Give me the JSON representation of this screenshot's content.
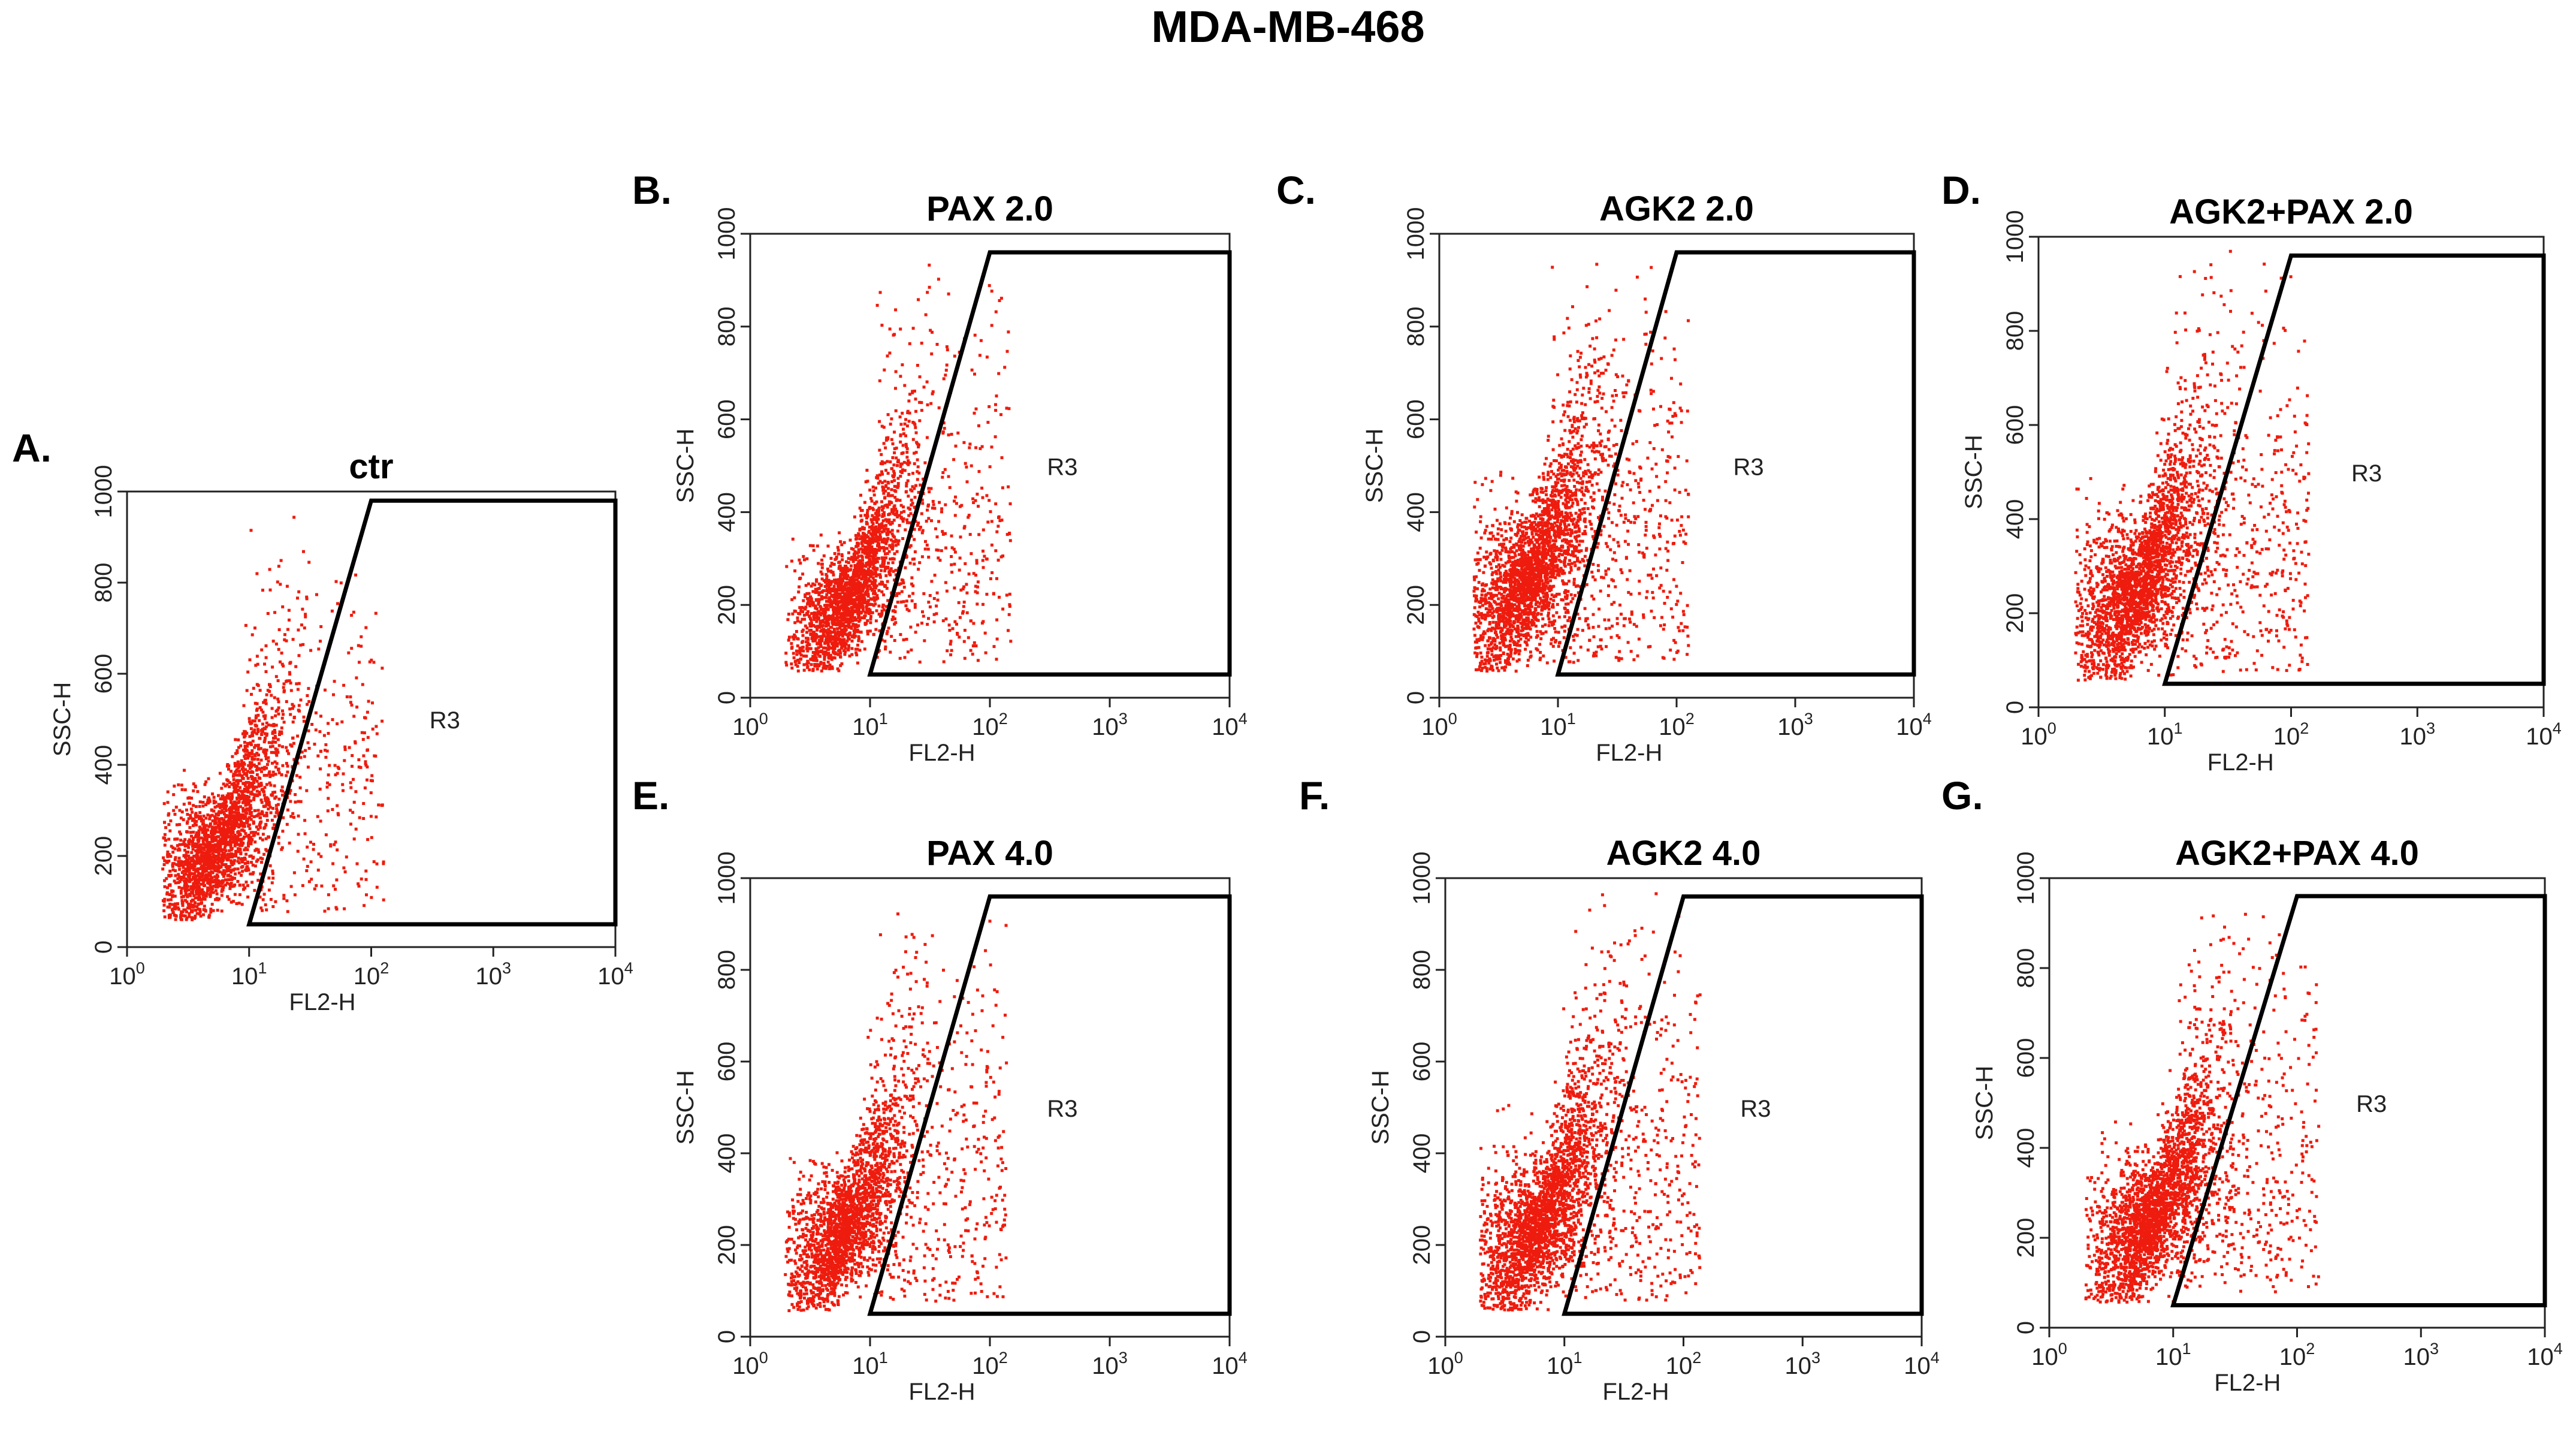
{
  "figure": {
    "title": "MDA-MB-468"
  },
  "chart_data": [
    {
      "type": "scatter",
      "letter": "A.",
      "title": "ctr",
      "xlabel": "FL2-H",
      "ylabel": "SSC-H",
      "xscale": "log",
      "xlim": [
        1,
        10000
      ],
      "ylim": [
        0,
        1000
      ],
      "yticks": [
        "0",
        "200",
        "400",
        "600",
        "800",
        "1000"
      ],
      "xticks": [
        {
          "base": "10",
          "exp": "0"
        },
        {
          "base": "10",
          "exp": "1"
        },
        {
          "base": "10",
          "exp": "2"
        },
        {
          "base": "10",
          "exp": "3"
        },
        {
          "base": "10",
          "exp": "4"
        }
      ],
      "gate": {
        "name": "R3",
        "polygon_data_units": [
          [
            10,
            50
          ],
          [
            10000,
            50
          ],
          [
            10000,
            980
          ],
          [
            100,
            980
          ]
        ]
      },
      "population": {
        "center_fl2": 5.5,
        "center_ssc": 220,
        "spread_decades": 0.28,
        "spread_ssc": 90,
        "slope": 260,
        "events": 2600
      }
    },
    {
      "type": "scatter",
      "letter": "B.",
      "title": "PAX 2.0",
      "xlabel": "FL2-H",
      "ylabel": "SSC-H",
      "xscale": "log",
      "xlim": [
        1,
        10000
      ],
      "ylim": [
        0,
        1000
      ],
      "yticks": [
        "0",
        "200",
        "400",
        "600",
        "800",
        "1000"
      ],
      "xticks": [
        {
          "base": "10",
          "exp": "0"
        },
        {
          "base": "10",
          "exp": "1"
        },
        {
          "base": "10",
          "exp": "2"
        },
        {
          "base": "10",
          "exp": "3"
        },
        {
          "base": "10",
          "exp": "4"
        }
      ],
      "gate": {
        "name": "R3",
        "polygon_data_units": [
          [
            10,
            50
          ],
          [
            10000,
            50
          ],
          [
            10000,
            960
          ],
          [
            100,
            960
          ]
        ]
      },
      "population": {
        "center_fl2": 6.5,
        "center_ssc": 210,
        "spread_decades": 0.27,
        "spread_ssc": 85,
        "slope": 280,
        "events": 2600
      }
    },
    {
      "type": "scatter",
      "letter": "C.",
      "title": "AGK2 2.0",
      "xlabel": "FL2-H",
      "ylabel": "SSC-H",
      "xscale": "log",
      "xlim": [
        1,
        10000
      ],
      "ylim": [
        0,
        1000
      ],
      "yticks": [
        "0",
        "200",
        "400",
        "600",
        "800",
        "1000"
      ],
      "xticks": [
        {
          "base": "10",
          "exp": "0"
        },
        {
          "base": "10",
          "exp": "1"
        },
        {
          "base": "10",
          "exp": "2"
        },
        {
          "base": "10",
          "exp": "3"
        },
        {
          "base": "10",
          "exp": "4"
        }
      ],
      "gate": {
        "name": "R3",
        "polygon_data_units": [
          [
            10,
            50
          ],
          [
            10000,
            50
          ],
          [
            10000,
            960
          ],
          [
            100,
            960
          ]
        ]
      },
      "population": {
        "center_fl2": 5.5,
        "center_ssc": 250,
        "spread_decades": 0.3,
        "spread_ssc": 110,
        "slope": 250,
        "events": 3000
      }
    },
    {
      "type": "scatter",
      "letter": "D.",
      "title": "AGK2+PAX 2.0",
      "xlabel": "FL2-H",
      "ylabel": "SSC-H",
      "xscale": "log",
      "xlim": [
        1,
        10000
      ],
      "ylim": [
        0,
        1000
      ],
      "yticks": [
        "0",
        "200",
        "400",
        "600",
        "800",
        "1000"
      ],
      "xticks": [
        {
          "base": "10",
          "exp": "0"
        },
        {
          "base": "10",
          "exp": "1"
        },
        {
          "base": "10",
          "exp": "2"
        },
        {
          "base": "10",
          "exp": "3"
        },
        {
          "base": "10",
          "exp": "4"
        }
      ],
      "gate": {
        "name": "R3",
        "polygon_data_units": [
          [
            10,
            50
          ],
          [
            10000,
            50
          ],
          [
            10000,
            960
          ],
          [
            100,
            960
          ]
        ]
      },
      "population": {
        "center_fl2": 6,
        "center_ssc": 250,
        "spread_decades": 0.3,
        "spread_ssc": 110,
        "slope": 260,
        "events": 3000
      }
    },
    {
      "type": "scatter",
      "letter": "E.",
      "title": "PAX 4.0",
      "xlabel": "FL2-H",
      "ylabel": "SSC-H",
      "xscale": "log",
      "xlim": [
        1,
        10000
      ],
      "ylim": [
        0,
        1000
      ],
      "yticks": [
        "0",
        "200",
        "400",
        "600",
        "800",
        "1000"
      ],
      "xticks": [
        {
          "base": "10",
          "exp": "0"
        },
        {
          "base": "10",
          "exp": "1"
        },
        {
          "base": "10",
          "exp": "2"
        },
        {
          "base": "10",
          "exp": "3"
        },
        {
          "base": "10",
          "exp": "4"
        }
      ],
      "gate": {
        "name": "R3",
        "polygon_data_units": [
          [
            10,
            50
          ],
          [
            10000,
            50
          ],
          [
            10000,
            960
          ],
          [
            100,
            960
          ]
        ]
      },
      "population": {
        "center_fl2": 6,
        "center_ssc": 230,
        "spread_decades": 0.28,
        "spread_ssc": 95,
        "slope": 270,
        "events": 2700
      }
    },
    {
      "type": "scatter",
      "letter": "F.",
      "title": "AGK2 4.0",
      "xlabel": "FL2-H",
      "ylabel": "SSC-H",
      "xscale": "log",
      "xlim": [
        1,
        10000
      ],
      "ylim": [
        0,
        1000
      ],
      "yticks": [
        "0",
        "200",
        "400",
        "600",
        "800",
        "1000"
      ],
      "xticks": [
        {
          "base": "10",
          "exp": "0"
        },
        {
          "base": "10",
          "exp": "1"
        },
        {
          "base": "10",
          "exp": "2"
        },
        {
          "base": "10",
          "exp": "3"
        },
        {
          "base": "10",
          "exp": "4"
        }
      ],
      "gate": {
        "name": "R3",
        "polygon_data_units": [
          [
            10,
            50
          ],
          [
            10000,
            50
          ],
          [
            10000,
            960
          ],
          [
            100,
            960
          ]
        ]
      },
      "population": {
        "center_fl2": 6,
        "center_ssc": 240,
        "spread_decades": 0.3,
        "spread_ssc": 105,
        "slope": 260,
        "events": 3000
      }
    },
    {
      "type": "scatter",
      "letter": "G.",
      "title": "AGK2+PAX 4.0",
      "xlabel": "FL2-H",
      "ylabel": "SSC-H",
      "xscale": "log",
      "xlim": [
        1,
        10000
      ],
      "ylim": [
        0,
        1000
      ],
      "yticks": [
        "0",
        "200",
        "400",
        "600",
        "800",
        "1000"
      ],
      "xticks": [
        {
          "base": "10",
          "exp": "0"
        },
        {
          "base": "10",
          "exp": "1"
        },
        {
          "base": "10",
          "exp": "2"
        },
        {
          "base": "10",
          "exp": "3"
        },
        {
          "base": "10",
          "exp": "4"
        }
      ],
      "gate": {
        "name": "R3",
        "polygon_data_units": [
          [
            10,
            50
          ],
          [
            10000,
            50
          ],
          [
            10000,
            960
          ],
          [
            100,
            960
          ]
        ]
      },
      "population": {
        "center_fl2": 6.5,
        "center_ssc": 240,
        "spread_decades": 0.29,
        "spread_ssc": 100,
        "slope": 270,
        "events": 3000
      }
    }
  ],
  "colors": {
    "events": "#ee1c0e",
    "gate": "#000000",
    "frame": "#222222"
  }
}
